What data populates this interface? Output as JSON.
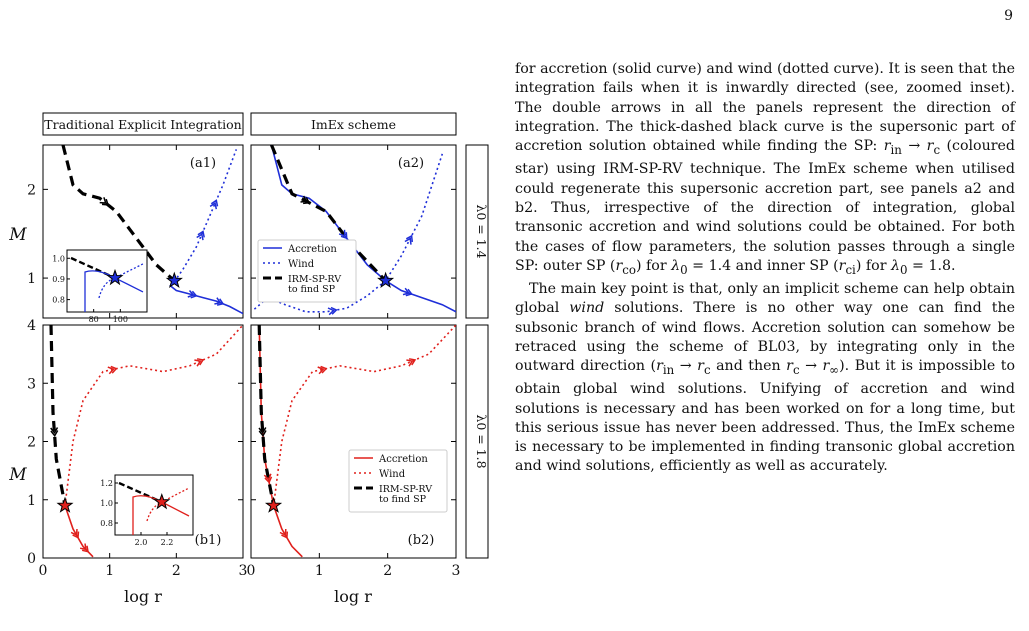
{
  "page_number": "9",
  "figure": {
    "column_headers": [
      "Traditional Explicit Integration",
      "ImEx scheme"
    ],
    "row_labels": [
      "λ0 = 1.4",
      "λ0 = 1.8"
    ],
    "y_axis_label": "M",
    "x_axis_label": "log r",
    "panels": [
      {
        "id": "a1",
        "label": "(a1)"
      },
      {
        "id": "a2",
        "label": "(a2)"
      },
      {
        "id": "b1",
        "label": "(b1)"
      },
      {
        "id": "b2",
        "label": "(b2)"
      }
    ],
    "legend": [
      "Accretion",
      "Wind",
      "IRM-SP-RV to find SP"
    ],
    "colors": {
      "row_a": "#1f2fd8",
      "row_b": "#e0201c",
      "sp_curve": "#000000"
    }
  },
  "chart_data": [
    {
      "type": "line",
      "panel": "(a1)",
      "xlabel": "log r",
      "ylabel": "M",
      "xlim": [
        0,
        3
      ],
      "ylim": [
        0.55,
        2.5
      ],
      "x_ticks": [
        "0",
        "1",
        "2",
        "3"
      ],
      "y_ticks": [
        "1",
        "2"
      ],
      "series": [
        {
          "name": "Accretion",
          "x": [
            1.9,
            2.0,
            2.2,
            2.4,
            2.6,
            2.8,
            3.0
          ],
          "y": [
            0.92,
            0.86,
            0.82,
            0.78,
            0.74,
            0.68,
            0.6
          ]
        },
        {
          "name": "Wind",
          "x": [
            1.97,
            2.1,
            2.3,
            2.5,
            2.7,
            2.9
          ],
          "y": [
            0.96,
            1.1,
            1.35,
            1.7,
            2.05,
            2.45
          ]
        },
        {
          "name": "IRM-SP-RV to find SP",
          "x": [
            0.3,
            0.45,
            0.6,
            0.85,
            1.1,
            1.3,
            1.5,
            1.7,
            1.97
          ],
          "y": [
            2.5,
            2.05,
            1.95,
            1.9,
            1.75,
            1.55,
            1.35,
            1.15,
            0.97
          ]
        }
      ],
      "inset": {
        "x_ticks": [
          "80",
          "100"
        ],
        "y_ticks": [
          "0.8",
          "0.9",
          "1.0"
        ]
      }
    },
    {
      "type": "line",
      "panel": "(a2)",
      "xlabel": "log r",
      "ylabel": "M",
      "xlim": [
        0,
        3
      ],
      "ylim": [
        0.55,
        2.5
      ],
      "x_ticks": [
        "0",
        "1",
        "2",
        "3"
      ],
      "y_ticks": [
        "1",
        "2"
      ],
      "series": [
        {
          "name": "Accretion",
          "x": [
            0.3,
            0.45,
            0.6,
            0.85,
            1.1,
            1.3,
            1.5,
            1.7,
            1.97,
            2.2,
            2.5,
            2.8,
            3.0
          ],
          "y": [
            2.5,
            2.05,
            1.95,
            1.9,
            1.75,
            1.55,
            1.35,
            1.15,
            0.97,
            0.86,
            0.78,
            0.7,
            0.62
          ]
        },
        {
          "name": "Wind",
          "x": [
            0.05,
            0.25,
            0.5,
            0.8,
            1.1,
            1.4,
            1.7,
            1.97,
            2.2,
            2.5,
            2.8
          ],
          "y": [
            0.65,
            0.78,
            0.7,
            0.62,
            0.62,
            0.66,
            0.8,
            0.97,
            1.25,
            1.7,
            2.4
          ]
        },
        {
          "name": "IRM-SP-RV to find SP",
          "x": [
            0.3,
            0.6,
            1.1,
            1.5,
            1.97
          ],
          "y": [
            2.5,
            1.95,
            1.75,
            1.35,
            0.97
          ]
        }
      ]
    },
    {
      "type": "line",
      "panel": "(b1)",
      "xlabel": "log r",
      "ylabel": "M",
      "xlim": [
        0,
        3
      ],
      "ylim": [
        0,
        4
      ],
      "x_ticks": [
        "0",
        "1",
        "2",
        "3"
      ],
      "y_ticks": [
        "0",
        "1",
        "2",
        "3",
        "4"
      ],
      "series": [
        {
          "name": "Accretion",
          "x": [
            0.33,
            0.45,
            0.6,
            0.75
          ],
          "y": [
            0.9,
            0.5,
            0.2,
            0.02
          ]
        },
        {
          "name": "Wind",
          "x": [
            0.33,
            0.45,
            0.6,
            0.9,
            1.3,
            1.8,
            2.2,
            2.6,
            3.0
          ],
          "y": [
            0.9,
            2.0,
            2.7,
            3.2,
            3.3,
            3.2,
            3.3,
            3.5,
            4.0
          ]
        },
        {
          "name": "IRM-SP-RV to find SP",
          "x": [
            0.12,
            0.15,
            0.2,
            0.33
          ],
          "y": [
            4.0,
            2.5,
            1.7,
            0.9
          ]
        }
      ],
      "inset": {
        "x_ticks": [
          "2.0",
          "2.2"
        ],
        "y_ticks": [
          "0.8",
          "1.0",
          "1.2"
        ]
      }
    },
    {
      "type": "line",
      "panel": "(b2)",
      "xlabel": "log r",
      "ylabel": "M",
      "xlim": [
        0,
        3
      ],
      "ylim": [
        0,
        4
      ],
      "x_ticks": [
        "0",
        "1",
        "2",
        "3"
      ],
      "y_ticks": [
        "0",
        "1",
        "2",
        "3",
        "4"
      ],
      "series": [
        {
          "name": "Accretion",
          "x": [
            0.12,
            0.15,
            0.2,
            0.33,
            0.45,
            0.6,
            0.75
          ],
          "y": [
            4.0,
            2.5,
            1.7,
            0.9,
            0.5,
            0.2,
            0.02
          ]
        },
        {
          "name": "Wind",
          "x": [
            0.33,
            0.45,
            0.6,
            0.9,
            1.3,
            1.8,
            2.2,
            2.6,
            3.0
          ],
          "y": [
            0.9,
            2.0,
            2.7,
            3.2,
            3.3,
            3.2,
            3.3,
            3.5,
            4.0
          ]
        },
        {
          "name": "IRM-SP-RV to find SP",
          "x": [
            0.12,
            0.15,
            0.2,
            0.33
          ],
          "y": [
            4.0,
            2.5,
            1.7,
            0.9
          ]
        }
      ]
    }
  ],
  "body": {
    "p1": "for accretion (solid curve) and wind (dotted curve). It is seen that the integration fails when it is inwardly directed (see, zoomed inset). The double arrows in all the panels represent the direction of integration. The thick-dashed black curve is the supersonic part of accretion solution obtained while finding the SP: r_in → r_c (coloured star) using IRM-SP-RV technique. The ImEx scheme when utilised could regenerate this supersonic accretion part, see panels a2 and b2. Thus, irrespective of the direction of integration, global transonic accretion and wind solutions could be obtained. For both the cases of flow parameters, the solution passes through a single SP: outer SP (r_co) for λ0 = 1.4 and inner SP (r_ci) for λ0 = 1.8.",
    "p2": "The main key point is that, only an implicit scheme can help obtain global wind solutions. There is no other way one can find the subsonic branch of wind flows. Accretion solution can somehow be retraced using the scheme of BL03, by integrating only in the outward direction (r_in → r_c and then r_c → r_∞). But it is impossible to obtain global wind solutions. Unifying of accretion and wind solutions is necessary and has been worked on for a long time, but this serious issue has never been addressed. Thus, the ImEx scheme is necessary to be implemented in finding transonic global accretion and wind solutions, efficiently as well as accurately."
  }
}
